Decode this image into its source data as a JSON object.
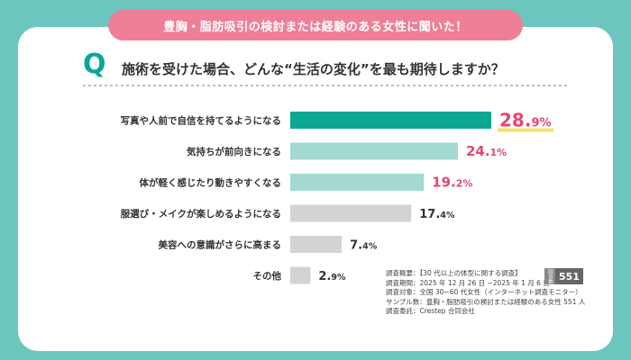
{
  "header": {
    "banner": "豊胸・脂肪吸引の検討または経験のある女性に聞いた！",
    "q_mark": "Q",
    "question": "施術を受けた場合、どんな“生活の変化”を最も期待しますか？"
  },
  "colors": {
    "background": "#6cc6bd",
    "banner": "#ef7f96",
    "bar_top": "#0aa893",
    "bar_high": "#a3d9d1",
    "bar_low": "#d3d3d3",
    "value_highlight": "#e8456e",
    "value_normal": "#333333"
  },
  "chart_data": {
    "type": "bar",
    "orientation": "horizontal",
    "categories": [
      "写真や人前で自信を持てるようになる",
      "気持ちが前向きになる",
      "体が軽く感じたり動きやすくなる",
      "服選び・メイクが楽しめるようになる",
      "美容への意識がさらに高まる",
      "その他"
    ],
    "values": [
      28.9,
      24.1,
      19.2,
      17.4,
      7.4,
      2.9
    ],
    "value_labels": [
      {
        "int": "28.",
        "dec": "9%"
      },
      {
        "int": "24.",
        "dec": "1%"
      },
      {
        "int": "19.",
        "dec": "2%"
      },
      {
        "int": "17.",
        "dec": "4%"
      },
      {
        "int": "7.",
        "dec": "4%"
      },
      {
        "int": "2.",
        "dec": "9%"
      }
    ],
    "unit": "%",
    "xlim": [
      0,
      30
    ],
    "grid": false,
    "legend": "none"
  },
  "survey": {
    "lines": [
      "調査概要：【30 代以上の体型に関する調査】",
      "調査期間：2025 年 12 月 26 日 ~2025 年 1 月 6 日",
      "調査対象：全国 30~60 代女性（インターネット調査モニター）",
      "サンプル数：豊胸・脂肪吸引の検討または経験のある女性 551 人",
      "調査委託：Crestep 合同会社"
    ],
    "sample_label": "回答数",
    "sample_value": "551"
  }
}
